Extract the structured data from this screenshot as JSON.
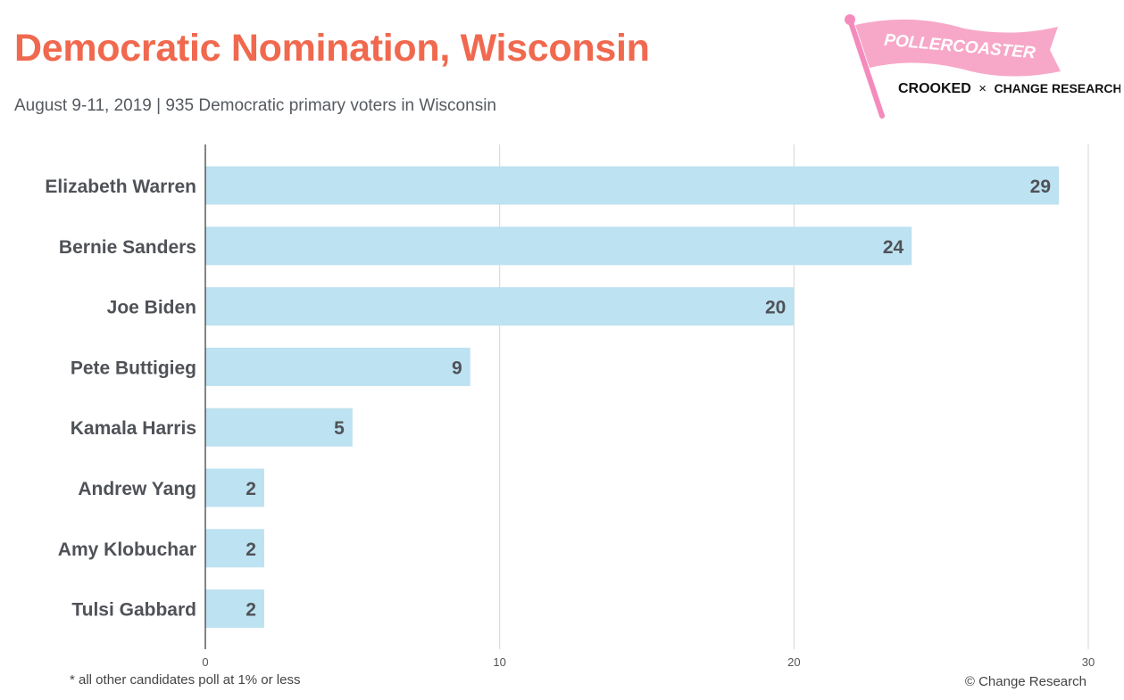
{
  "header": {
    "title": "Democratic Nomination, Wisconsin",
    "subtitle": "August 9-11, 2019 | 935 Democratic primary voters in Wisconsin"
  },
  "logo": {
    "flag_text": "POLLERCOASTER",
    "brand_left": "CROOKED",
    "brand_separator": "×",
    "brand_right": "CHANGE RESEARCH",
    "trademark": "™"
  },
  "chart_data": {
    "type": "bar",
    "orientation": "horizontal",
    "categories": [
      "Elizabeth Warren",
      "Bernie Sanders",
      "Joe Biden",
      "Pete Buttigieg",
      "Kamala Harris",
      "Andrew Yang",
      "Amy Klobuchar",
      "Tulsi Gabbard"
    ],
    "values": [
      29,
      24,
      20,
      9,
      5,
      2,
      2,
      2
    ],
    "xlim": [
      0,
      30
    ],
    "xticks": [
      0,
      10,
      20,
      30
    ],
    "grid": true,
    "data_labels": true,
    "bar_color": "#bde2f1"
  },
  "footer": {
    "footnote": "* all other candidates poll at 1% or less",
    "copyright": "© Change Research"
  },
  "colors": {
    "title": "#f0694f",
    "label": "#4f5257",
    "grid": "#d6d6d6",
    "logo_flag": "#f7a8c8",
    "logo_pole": "#f48bbd"
  }
}
